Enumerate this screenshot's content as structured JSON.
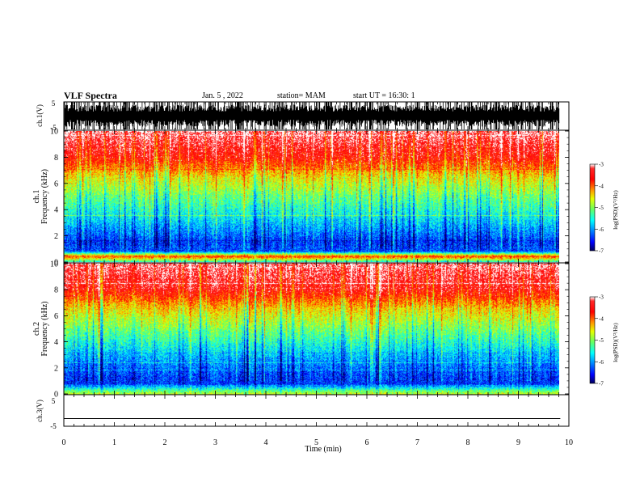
{
  "header": {
    "title": "VLF Spectra",
    "date": "Jan. 5 , 2022",
    "station": "station= MAM",
    "start": "start UT = 16:30: 1"
  },
  "colors": {
    "colormap": [
      "#000080",
      "#0000ff",
      "#0080ff",
      "#00ffff",
      "#80ff80",
      "#ffff00",
      "#ff8000",
      "#ff0000",
      "#ffffff"
    ]
  },
  "chart_data": [
    {
      "type": "line",
      "panel": "ch1-waveform",
      "ylabel": "ch.1(V)",
      "ylim": [
        -5,
        5
      ],
      "yticks": [
        "5",
        "-5"
      ],
      "xlim": [
        0,
        10
      ],
      "description_values": {
        "amplitude_range_V": [
          -5,
          5
        ]
      }
    },
    {
      "type": "heatmap",
      "panel": "ch1-spectrogram",
      "ylabel": "ch.1\nFrequency (kHz)",
      "ylabel_line1": "ch.1",
      "ylabel_line2": "Frequency (kHz)",
      "ylim": [
        0,
        10
      ],
      "yticks": [
        "0",
        "2",
        "4",
        "6",
        "8",
        "10"
      ],
      "xlim": [
        0,
        9.83
      ],
      "colorbar": {
        "label": "log(PSD)(V²/Hz)",
        "range": [
          -7,
          -3
        ],
        "ticks": [
          "-3",
          "-4",
          "-5",
          "-6",
          "-7"
        ]
      },
      "band_profile": [
        {
          "f": 0.0,
          "v": -5.4
        },
        {
          "f": 0.4,
          "v": -3.8
        },
        {
          "f": 0.8,
          "v": -6.3
        },
        {
          "f": 1.5,
          "v": -6.4
        },
        {
          "f": 2.5,
          "v": -6.0
        },
        {
          "f": 3.5,
          "v": -5.6
        },
        {
          "f": 5.0,
          "v": -5.1
        },
        {
          "f": 6.5,
          "v": -4.5
        },
        {
          "f": 8.0,
          "v": -3.6
        },
        {
          "f": 10.0,
          "v": -3.1
        }
      ]
    },
    {
      "type": "heatmap",
      "panel": "ch2-spectrogram",
      "ylabel": "ch.2\nFrequency (kHz)",
      "ylabel_line1": "ch.2",
      "ylabel_line2": "Frequency (kHz)",
      "ylim": [
        0,
        10
      ],
      "yticks": [
        "0",
        "2",
        "4",
        "6",
        "8",
        "10"
      ],
      "xlim": [
        0,
        9.83
      ],
      "colorbar": {
        "label": "log(PSD)(V²/Hz)",
        "range": [
          -7,
          -3
        ],
        "ticks": [
          "-3",
          "-4",
          "-5",
          "-6",
          "-7"
        ]
      },
      "band_profile": [
        {
          "f": 0.0,
          "v": -4.7
        },
        {
          "f": 0.3,
          "v": -5.2
        },
        {
          "f": 0.8,
          "v": -6.4
        },
        {
          "f": 1.5,
          "v": -6.3
        },
        {
          "f": 2.5,
          "v": -6.0
        },
        {
          "f": 3.5,
          "v": -5.6
        },
        {
          "f": 5.0,
          "v": -5.0
        },
        {
          "f": 6.5,
          "v": -4.4
        },
        {
          "f": 8.0,
          "v": -3.5
        },
        {
          "f": 10.0,
          "v": -3.1
        }
      ]
    },
    {
      "type": "line",
      "panel": "ch3-waveform",
      "ylabel": "ch.3(V)",
      "ylim": [
        -5,
        5
      ],
      "yticks": [
        "5",
        "-5"
      ],
      "xlim": [
        0,
        9.83
      ],
      "x": [
        0,
        9.83
      ],
      "y": [
        -2.5,
        -2.5
      ]
    }
  ],
  "xaxis": {
    "label": "Time (min)",
    "ticks": [
      "0",
      "1",
      "2",
      "3",
      "4",
      "5",
      "6",
      "7",
      "8",
      "9",
      "10"
    ],
    "range": [
      0,
      10
    ]
  }
}
